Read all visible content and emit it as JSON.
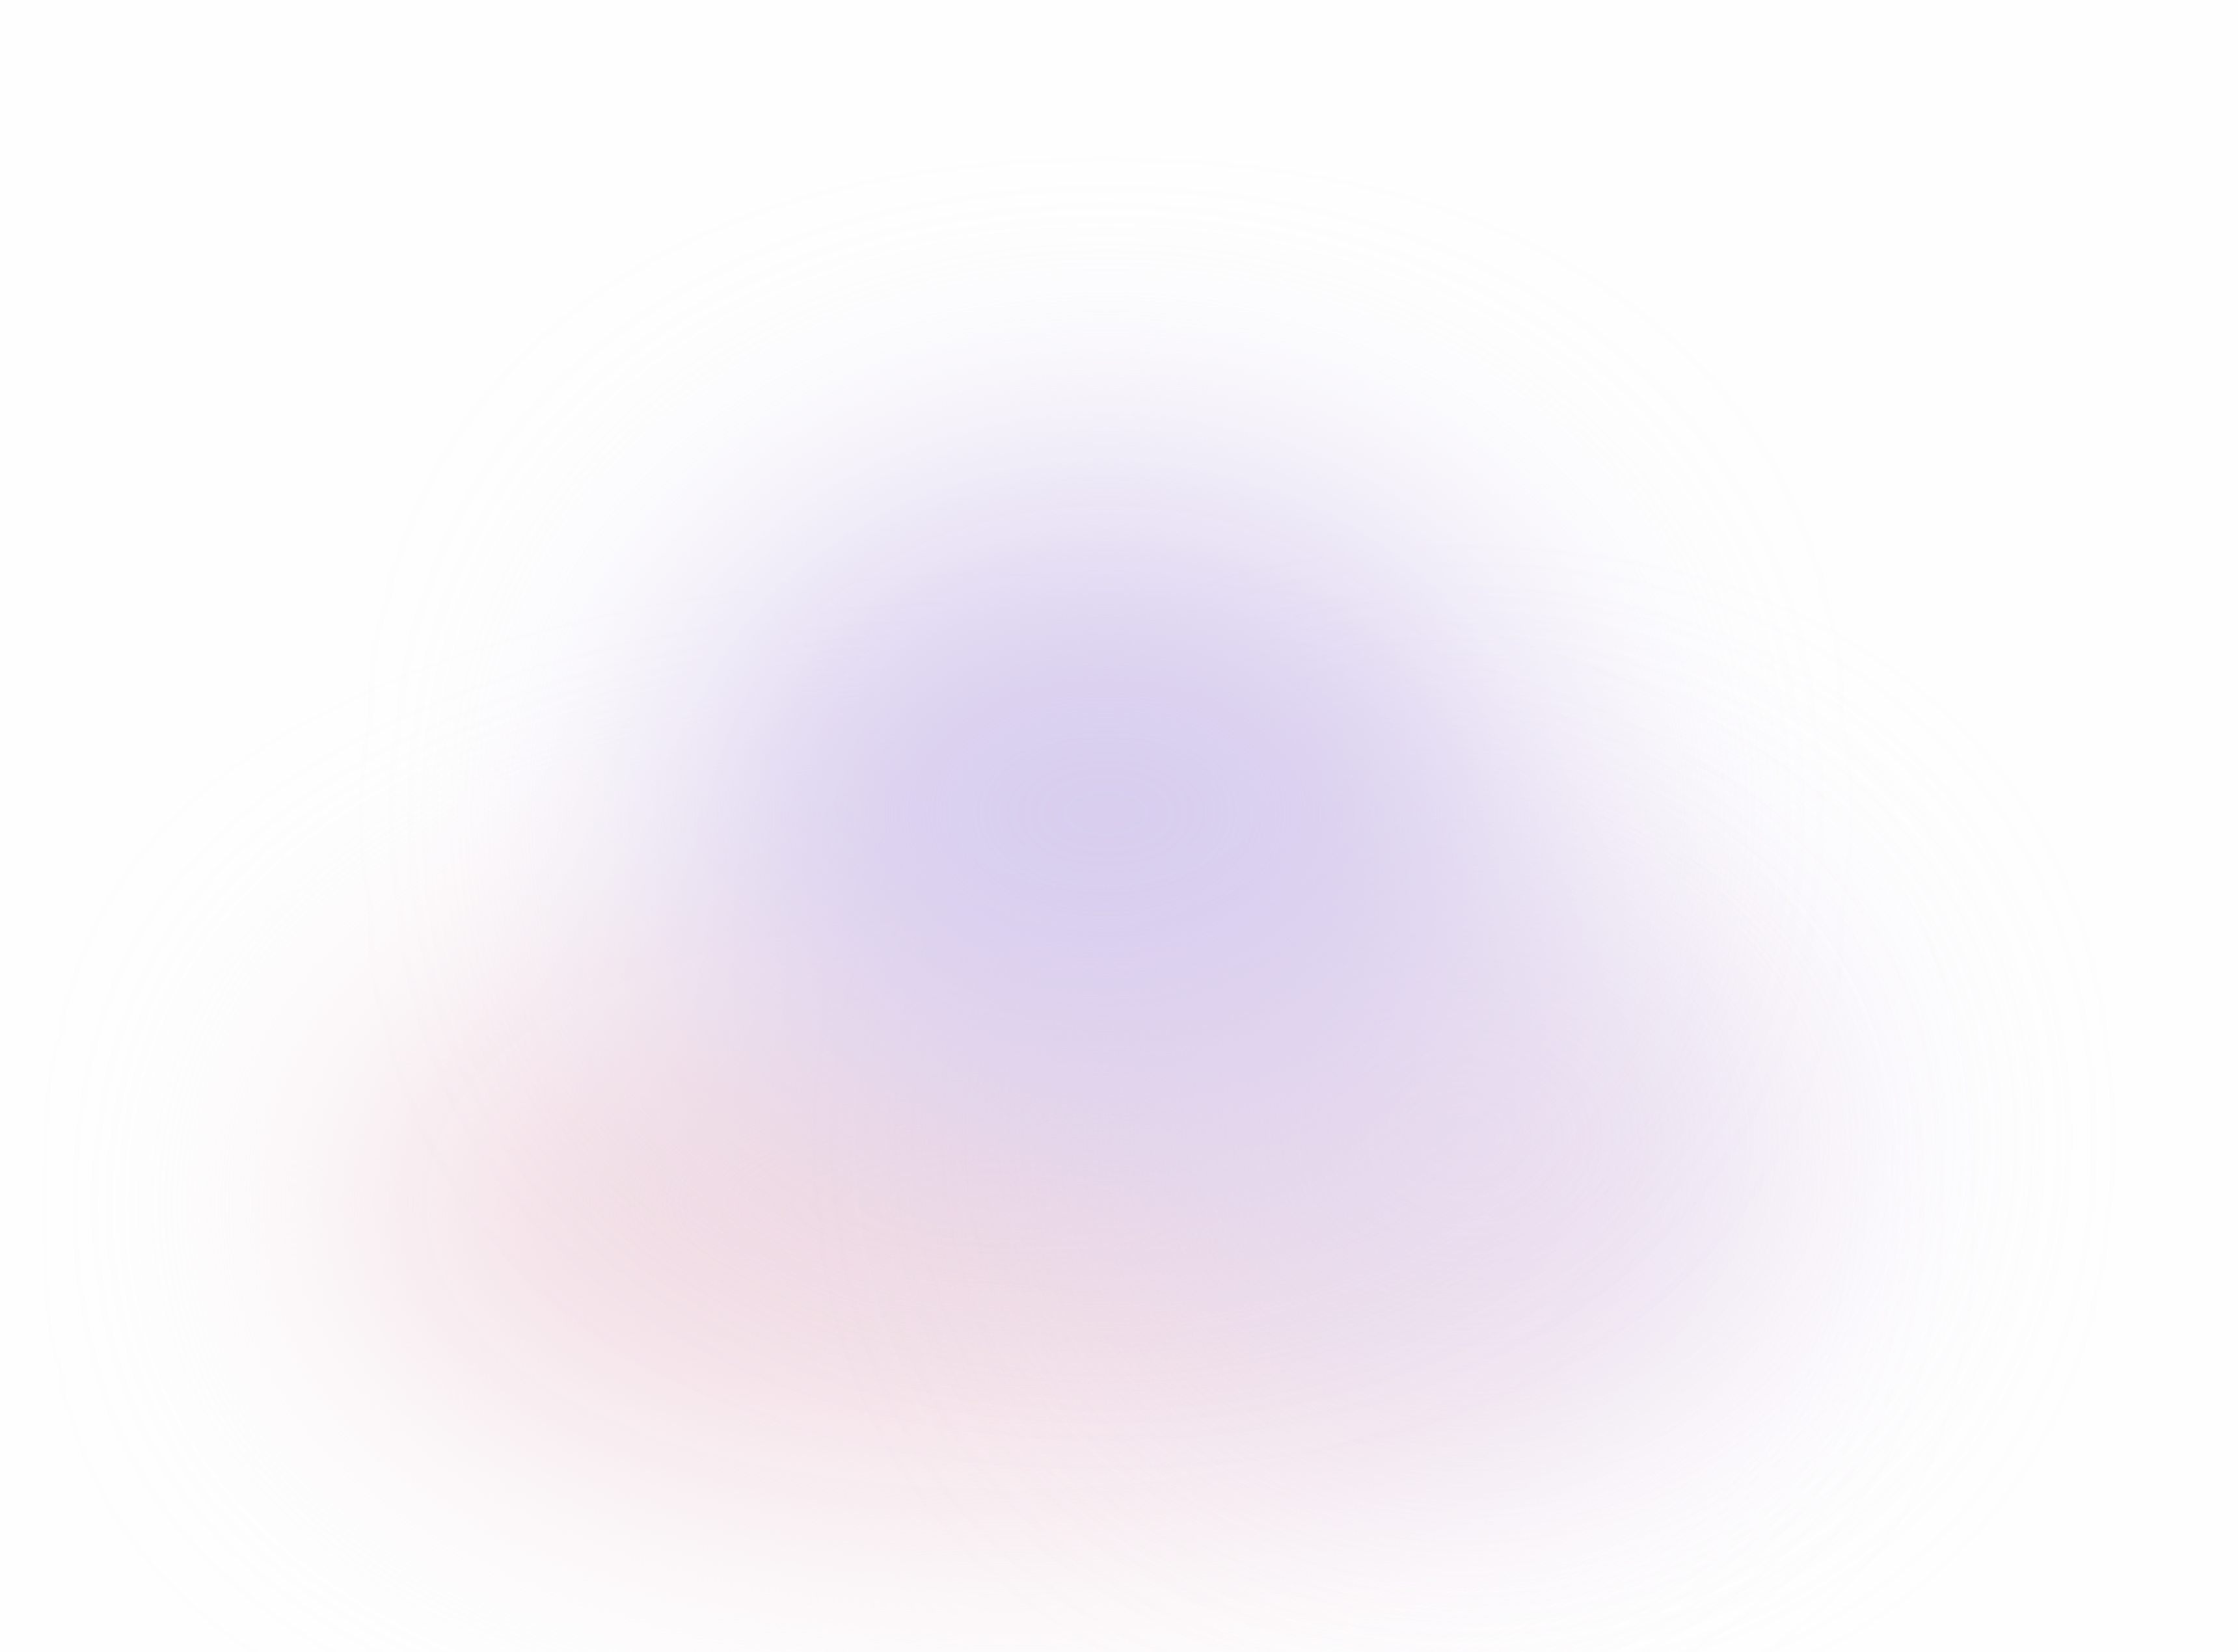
{
  "background": {
    "base_color": "#fefefe",
    "glow_colors": {
      "purple": "#d8cdee",
      "violet": "#e6dcf2",
      "pink": "#f1dbe3"
    }
  }
}
